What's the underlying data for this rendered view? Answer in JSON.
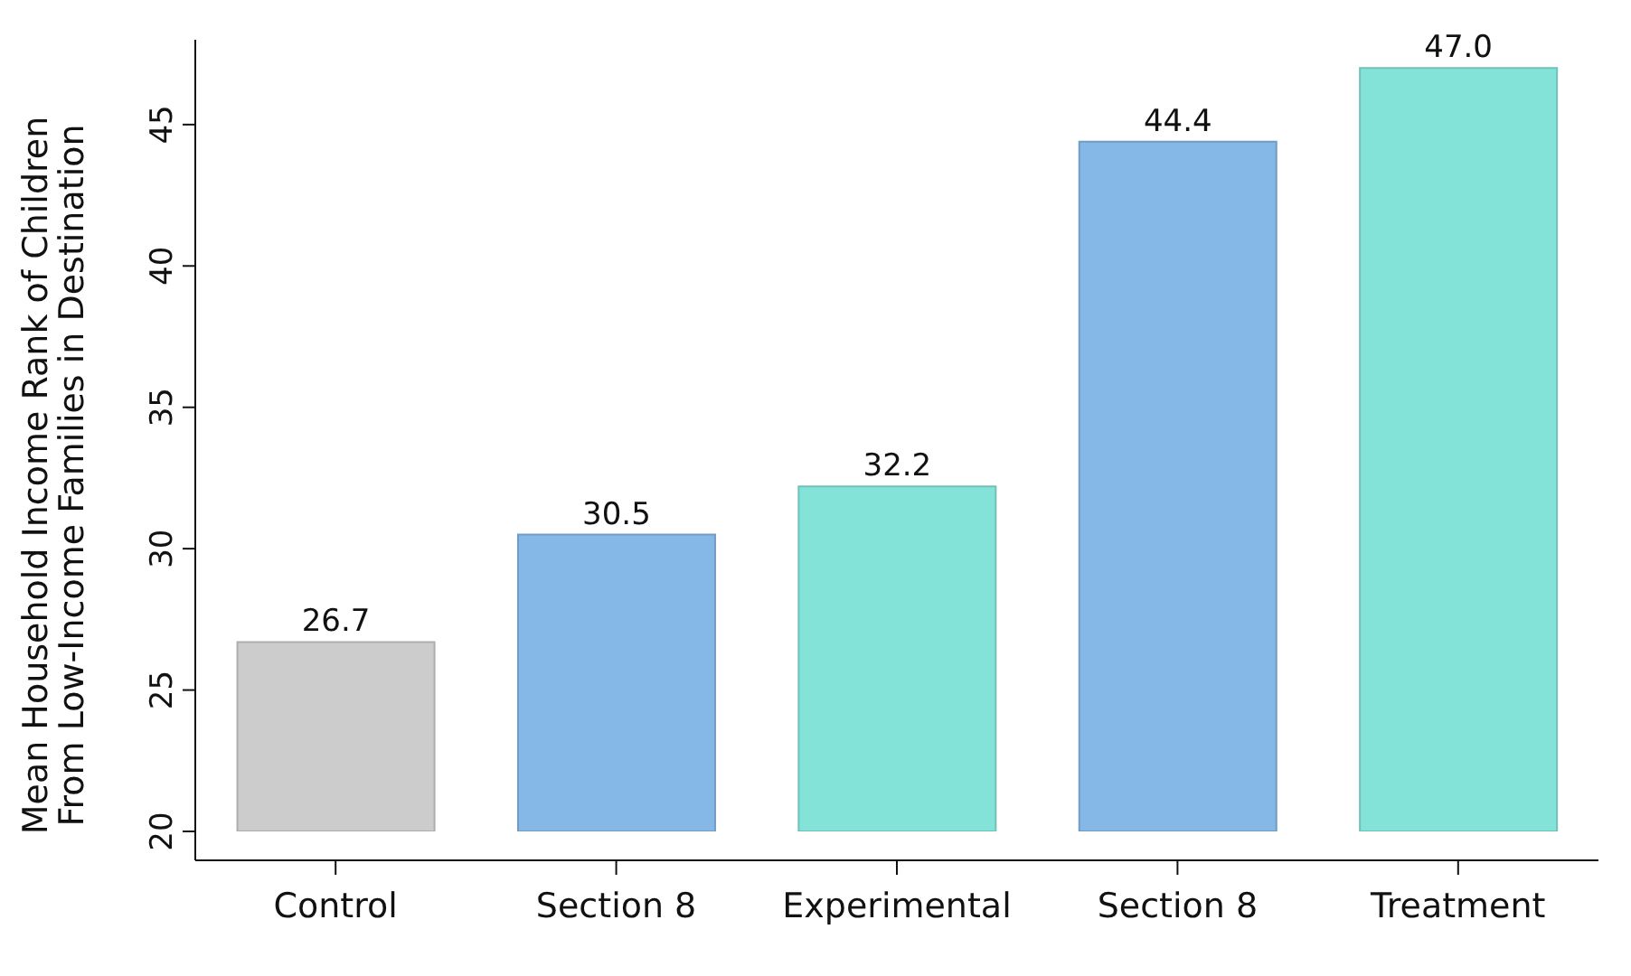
{
  "chart_data": {
    "type": "bar",
    "ylabel": "Mean Household Income Rank of Children\nFrom Low-Income Families in Destination",
    "categories": [
      "Control",
      "Section 8",
      "Experimental",
      "Section 8",
      "Treatment"
    ],
    "values": [
      26.7,
      30.5,
      32.2,
      44.4,
      47.0
    ],
    "colors": [
      "#cccccc",
      "#85b8e6",
      "#84e3d9",
      "#85b8e6",
      "#84e3d9"
    ],
    "value_labels": [
      "26.7",
      "30.5",
      "32.2",
      "44.4",
      "47.0"
    ],
    "ylim": [
      20,
      48
    ],
    "yticks": [
      20,
      25,
      30,
      35,
      40,
      45
    ]
  }
}
